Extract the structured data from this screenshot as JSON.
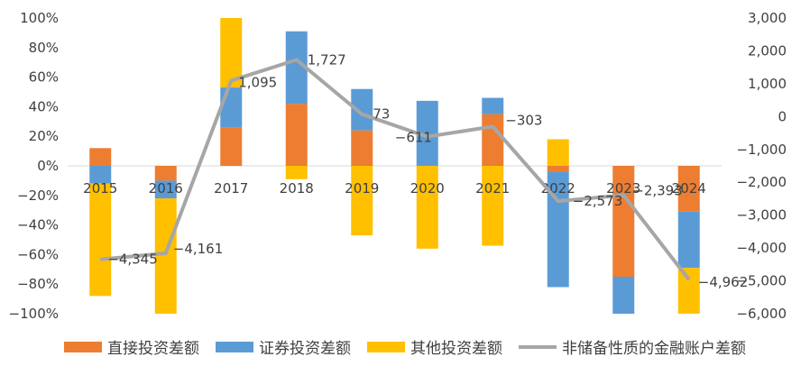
{
  "chart_data": {
    "type": "bar",
    "categories": [
      "2015",
      "2016",
      "2017",
      "2018",
      "2019",
      "2020",
      "2021",
      "2022",
      "2023",
      "2024"
    ],
    "series": [
      {
        "name": "直接投资差额",
        "color": "#ED7D31",
        "values": [
          12,
          -10,
          26,
          42,
          24,
          0,
          35,
          -4,
          -75,
          -31
        ]
      },
      {
        "name": "证券投资差额",
        "color": "#5B9BD5",
        "values": [
          -12,
          -12,
          27,
          49,
          28,
          44,
          11,
          -78,
          -25,
          -38
        ]
      },
      {
        "name": "其他投资差额",
        "color": "#FFC000",
        "values": [
          -76,
          -78,
          47,
          -9,
          -47,
          -56,
          -54,
          18,
          0,
          -31
        ]
      }
    ],
    "line_series": {
      "name": "非储备性质的金融账户差额",
      "color": "#A6A6A6",
      "values": [
        -4345,
        -4161,
        1095,
        1727,
        73,
        -611,
        -303,
        -2573,
        -2393,
        -4962
      ],
      "labels": [
        "−4,345",
        "−4,161",
        "1,095",
        "1,727",
        "73",
        "−611",
        "−303",
        "−2,573",
        "−2,393",
        "−4,962"
      ]
    },
    "y_left": {
      "min": -100,
      "max": 100,
      "ticks": [
        "−100%",
        "−80%",
        "−60%",
        "−40%",
        "−20%",
        "0%",
        "20%",
        "40%",
        "60%",
        "80%",
        "100%"
      ]
    },
    "y_right": {
      "min": -6000,
      "max": 3000,
      "ticks": [
        "−6,000",
        "−5,000",
        "−4,000",
        "−3,000",
        "−2,000",
        "−1,000",
        "0",
        "1,000",
        "2,000",
        "3,000"
      ]
    },
    "legend_position": "bottom"
  }
}
